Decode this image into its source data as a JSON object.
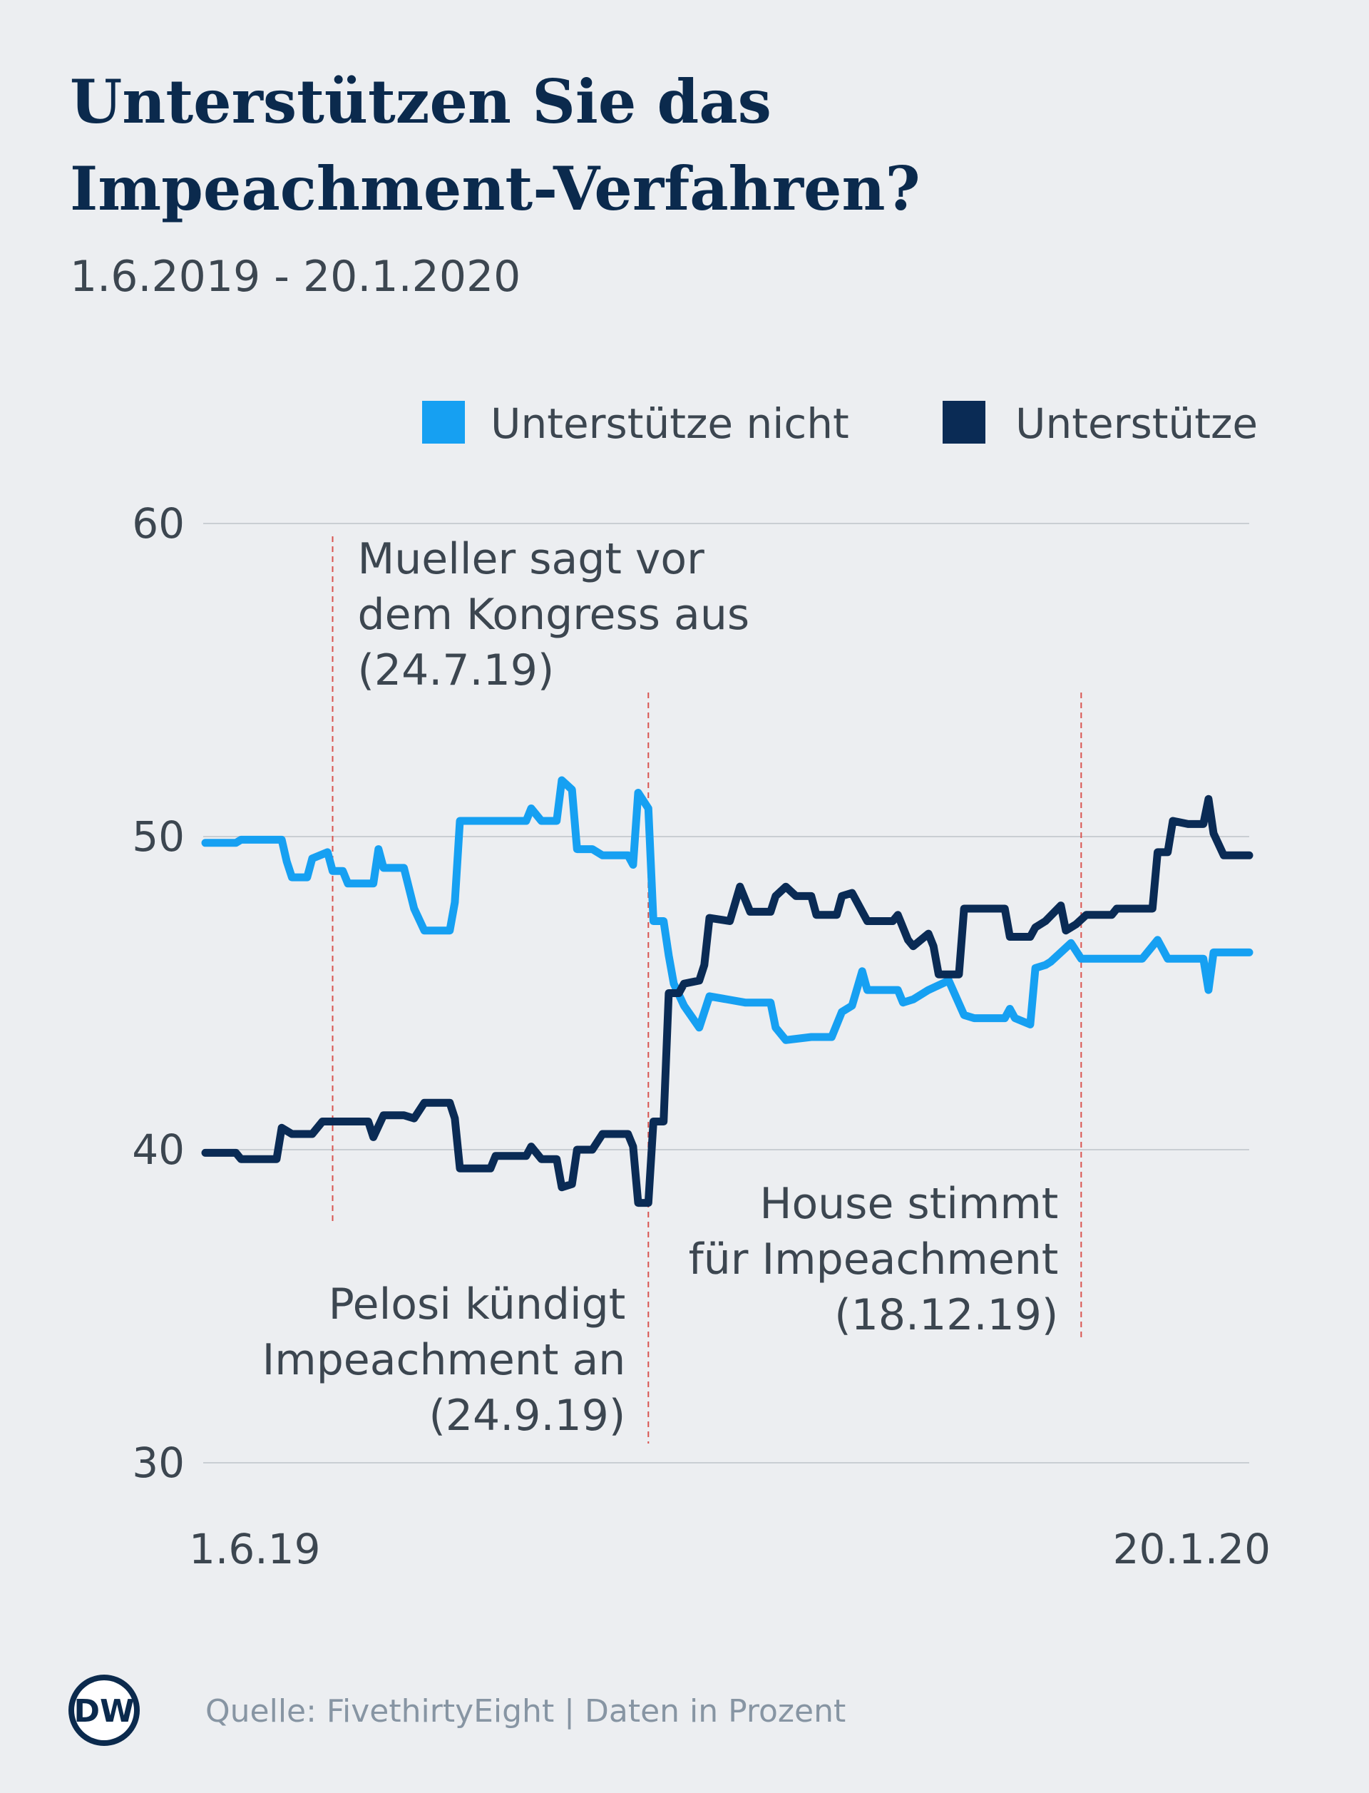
{
  "chart_data": {
    "type": "line",
    "title": [
      "Unterstützen Sie das",
      "Impeachment-Verfahren?"
    ],
    "subtitle": "1.6.2019 - 20.1.2020",
    "source": "Quelle: FivethirtyEight | Daten in Prozent",
    "logo": "DW",
    "xlim": [
      "2019-06-01",
      "2020-01-20"
    ],
    "xticks": [
      {
        "value": "2019-06-01",
        "label": "1.6.19"
      },
      {
        "value": "2020-01-20",
        "label": "20.1.20"
      }
    ],
    "ylim": [
      30,
      60
    ],
    "yticks": [
      30,
      40,
      50,
      60
    ],
    "grid": true,
    "legend": "top-right",
    "series": [
      {
        "name": "Unterstütze nicht",
        "color": "#16a0f2",
        "x": [
          "2019-06-29",
          "2019-07-05",
          "2019-07-06",
          "2019-07-14",
          "2019-07-15",
          "2019-07-16",
          "2019-07-19",
          "2019-07-20",
          "2019-07-23",
          "2019-07-24",
          "2019-07-26",
          "2019-07-27",
          "2019-08-01",
          "2019-08-02",
          "2019-08-03",
          "2019-08-07",
          "2019-08-09",
          "2019-08-11",
          "2019-08-16",
          "2019-08-17",
          "2019-08-18",
          "2019-08-31",
          "2019-09-01",
          "2019-09-03",
          "2019-09-06",
          "2019-09-07",
          "2019-09-09",
          "2019-09-10",
          "2019-09-13",
          "2019-09-15",
          "2019-09-20",
          "2019-09-21",
          "2019-09-22",
          "2019-09-24",
          "2019-09-25",
          "2019-09-27",
          "2019-09-28",
          "2019-09-29",
          "2019-10-01",
          "2019-10-04",
          "2019-10-06",
          "2019-10-13",
          "2019-10-18",
          "2019-10-19",
          "2019-10-21",
          "2019-10-26",
          "2019-10-30",
          "2019-11-01",
          "2019-11-03",
          "2019-11-05",
          "2019-11-06",
          "2019-11-12",
          "2019-11-13",
          "2019-11-15",
          "2019-11-18",
          "2019-11-22",
          "2019-11-25",
          "2019-11-27",
          "2019-12-03",
          "2019-12-04",
          "2019-12-05",
          "2019-12-08",
          "2019-12-09",
          "2019-12-11",
          "2019-12-12",
          "2019-12-16",
          "2019-12-18",
          "2019-12-30",
          "2020-01-02",
          "2020-01-04",
          "2020-01-11",
          "2020-01-12",
          "2020-01-13",
          "2020-01-20"
        ],
        "values": [
          49.8,
          49.8,
          49.9,
          49.9,
          49.2,
          48.7,
          48.7,
          49.3,
          49.5,
          48.9,
          48.9,
          48.5,
          48.5,
          49.6,
          49.0,
          49.0,
          47.7,
          47.0,
          47.0,
          47.9,
          50.5,
          50.5,
          50.9,
          50.5,
          50.5,
          51.8,
          51.5,
          49.6,
          49.6,
          49.4,
          49.4,
          49.1,
          51.4,
          50.9,
          47.3,
          47.3,
          46.2,
          45.3,
          44.6,
          43.9,
          44.9,
          44.7,
          44.7,
          43.9,
          43.5,
          43.6,
          43.6,
          44.4,
          44.6,
          45.7,
          45.1,
          45.1,
          44.7,
          44.8,
          45.1,
          45.4,
          44.3,
          44.2,
          44.2,
          44.5,
          44.2,
          44.0,
          45.8,
          45.9,
          46.0,
          46.6,
          46.1,
          46.1,
          46.7,
          46.1,
          46.1,
          45.1,
          46.3,
          46.3
        ]
      },
      {
        "name": "Unterstütze",
        "color": "#0a2b55",
        "x": [
          "2019-06-29",
          "2019-07-05",
          "2019-07-06",
          "2019-07-13",
          "2019-07-14",
          "2019-07-16",
          "2019-07-20",
          "2019-07-22",
          "2019-07-27",
          "2019-07-31",
          "2019-08-01",
          "2019-08-03",
          "2019-08-07",
          "2019-08-09",
          "2019-08-11",
          "2019-08-16",
          "2019-08-17",
          "2019-08-18",
          "2019-08-24",
          "2019-08-25",
          "2019-08-31",
          "2019-09-01",
          "2019-09-03",
          "2019-09-06",
          "2019-09-07",
          "2019-09-09",
          "2019-09-10",
          "2019-09-13",
          "2019-09-15",
          "2019-09-20",
          "2019-09-21",
          "2019-09-22",
          "2019-09-24",
          "2019-09-25",
          "2019-09-27",
          "2019-09-28",
          "2019-09-30",
          "2019-10-01",
          "2019-10-04",
          "2019-10-05",
          "2019-10-06",
          "2019-10-10",
          "2019-10-12",
          "2019-10-14",
          "2019-10-18",
          "2019-10-19",
          "2019-10-21",
          "2019-10-23",
          "2019-10-26",
          "2019-10-27",
          "2019-10-31",
          "2019-11-01",
          "2019-11-03",
          "2019-11-06",
          "2019-11-11",
          "2019-11-12",
          "2019-11-14",
          "2019-11-15",
          "2019-11-18",
          "2019-11-19",
          "2019-11-20",
          "2019-11-24",
          "2019-11-25",
          "2019-12-03",
          "2019-12-04",
          "2019-12-08",
          "2019-12-09",
          "2019-12-11",
          "2019-12-14",
          "2019-12-15",
          "2019-12-17",
          "2019-12-19",
          "2019-12-24",
          "2019-12-25",
          "2020-01-01",
          "2020-01-02",
          "2020-01-04",
          "2020-01-05",
          "2020-01-08",
          "2020-01-11",
          "2020-01-12",
          "2020-01-13",
          "2020-01-15",
          "2020-01-20"
        ],
        "values": [
          39.9,
          39.9,
          39.7,
          39.7,
          40.7,
          40.5,
          40.5,
          40.9,
          40.9,
          40.9,
          40.4,
          41.1,
          41.1,
          41.0,
          41.5,
          41.5,
          41.0,
          39.4,
          39.4,
          39.8,
          39.8,
          40.1,
          39.7,
          39.7,
          38.8,
          38.9,
          40.0,
          40.0,
          40.5,
          40.5,
          40.1,
          38.3,
          38.3,
          40.9,
          40.9,
          45.0,
          45.0,
          45.3,
          45.4,
          45.9,
          47.4,
          47.3,
          48.4,
          47.6,
          47.6,
          48.1,
          48.4,
          48.1,
          48.1,
          47.5,
          47.5,
          48.1,
          48.2,
          47.3,
          47.3,
          47.5,
          46.7,
          46.5,
          46.9,
          46.5,
          45.6,
          45.6,
          47.7,
          47.7,
          46.8,
          46.8,
          47.1,
          47.3,
          47.8,
          47.0,
          47.2,
          47.5,
          47.5,
          47.7,
          47.7,
          49.5,
          49.5,
          50.5,
          50.4,
          50.4,
          51.2,
          50.1,
          49.4,
          49.4
        ]
      }
    ],
    "annotations": [
      {
        "text": [
          "Mueller sagt vor",
          "dem Kongress aus",
          "(24.7.19)"
        ],
        "date": "2019-07-24"
      },
      {
        "text": [
          "Pelosi kündigt",
          "Impeachment an",
          "(24.9.19)"
        ],
        "date": "2019-09-24"
      },
      {
        "text": [
          "House stimmt",
          "für Impeachment",
          "(18.12.19)"
        ],
        "date": "2019-12-18"
      }
    ]
  }
}
